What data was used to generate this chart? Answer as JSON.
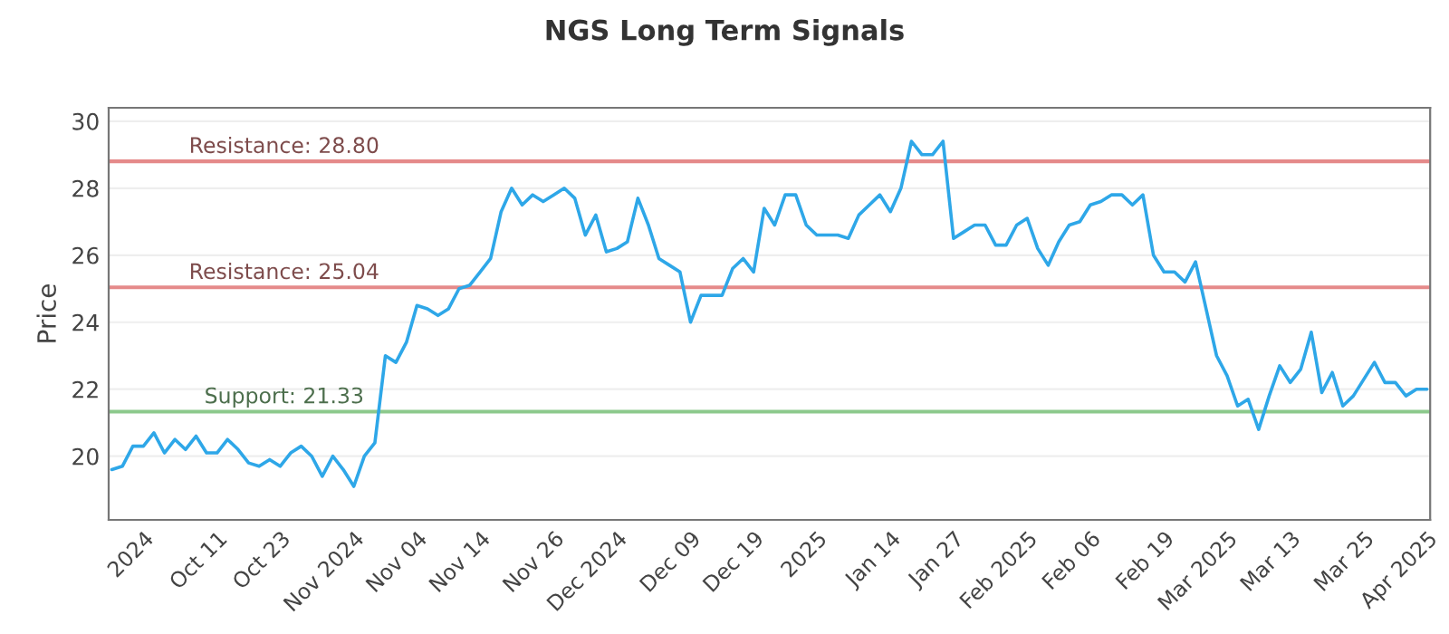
{
  "chart_data": {
    "type": "line",
    "title": "NGS Long Term Signals",
    "ylabel": "Price",
    "categories": [
      null,
      null,
      null,
      "2024",
      null,
      null,
      null,
      null,
      null,
      null,
      "Oct 11",
      null,
      null,
      null,
      null,
      null,
      "Oct 23",
      null,
      null,
      null,
      null,
      null,
      null,
      "Nov 2024",
      null,
      null,
      null,
      null,
      null,
      "Nov 04",
      null,
      null,
      null,
      null,
      null,
      "Nov 14",
      null,
      null,
      null,
      null,
      null,
      null,
      "Nov 26",
      null,
      null,
      null,
      null,
      null,
      "Dec 2024",
      null,
      null,
      null,
      null,
      null,
      null,
      "Dec 09",
      null,
      null,
      null,
      null,
      null,
      "Dec 19",
      null,
      null,
      null,
      null,
      null,
      "2025",
      null,
      null,
      null,
      null,
      null,
      null,
      "Jan 14",
      null,
      null,
      null,
      null,
      null,
      "Jan 27",
      null,
      null,
      null,
      null,
      null,
      null,
      "Feb 2025",
      null,
      null,
      null,
      null,
      null,
      "Feb 06",
      null,
      null,
      null,
      null,
      null,
      null,
      "Feb 19",
      null,
      null,
      null,
      null,
      null,
      "Mar 2025",
      null,
      null,
      null,
      null,
      null,
      "Mar 13",
      null,
      null,
      null,
      null,
      null,
      null,
      "Mar 25",
      null,
      null,
      null,
      null,
      null,
      "Apr 2025"
    ],
    "series": [
      {
        "color": "#2ea7e8",
        "values": [
          19.6,
          19.7,
          20.3,
          20.3,
          20.7,
          20.1,
          20.5,
          20.2,
          20.6,
          20.1,
          20.1,
          20.5,
          20.2,
          19.8,
          19.7,
          19.9,
          19.7,
          20.1,
          20.3,
          20.0,
          19.4,
          20.0,
          19.6,
          19.1,
          20.0,
          20.4,
          23.0,
          22.8,
          23.4,
          24.5,
          24.4,
          24.2,
          24.4,
          25.0,
          25.1,
          25.5,
          25.9,
          27.3,
          28.0,
          27.5,
          27.8,
          27.6,
          27.8,
          28.0,
          27.7,
          26.6,
          27.2,
          26.1,
          26.2,
          26.4,
          27.7,
          26.9,
          25.9,
          25.7,
          25.5,
          24.0,
          24.8,
          24.8,
          24.8,
          25.6,
          25.9,
          25.5,
          27.4,
          26.9,
          27.8,
          27.8,
          26.9,
          26.6,
          26.6,
          26.6,
          26.5,
          27.2,
          27.5,
          27.8,
          27.3,
          28.0,
          29.4,
          29.0,
          29.0,
          29.4,
          26.5,
          26.7,
          26.9,
          26.9,
          26.3,
          26.3,
          26.9,
          27.1,
          26.2,
          25.7,
          26.4,
          26.9,
          27.0,
          27.5,
          27.6,
          27.8,
          27.8,
          27.5,
          27.8,
          26.0,
          25.5,
          25.5,
          25.2,
          25.8,
          24.4,
          23.0,
          22.4,
          21.5,
          21.7,
          20.8,
          21.8,
          22.7,
          22.2,
          22.6,
          23.7,
          21.9,
          22.5,
          21.5,
          21.8,
          22.3,
          22.8,
          22.2,
          22.2,
          21.8,
          22.0,
          22.0
        ]
      }
    ],
    "ylim": [
      18.1,
      30.4
    ],
    "yticks": [
      20,
      22,
      24,
      26,
      28,
      30
    ],
    "grid": "y",
    "marker": "none",
    "line_style": "solid",
    "ref_lines": [
      {
        "axis": "y",
        "value": 28.8,
        "label": "Resistance: 28.80",
        "color": "#e58a8a"
      },
      {
        "axis": "y",
        "value": 25.04,
        "label": "Resistance: 25.04",
        "color": "#e58a8a"
      },
      {
        "axis": "y",
        "value": 21.33,
        "label": "Support: 21.33",
        "color": "#8cc98c"
      }
    ]
  }
}
